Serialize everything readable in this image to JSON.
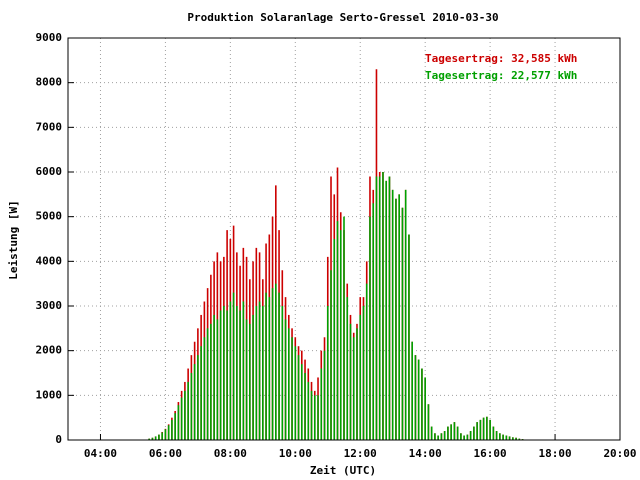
{
  "chart_data": {
    "type": "impulse",
    "title": "Produktion Solaranlage Serto-Gressel 2010-03-30",
    "x_label": "Zeit (UTC)",
    "y_label": "Leistung [W]",
    "xlim": [
      3,
      20
    ],
    "ylim": [
      0,
      9000
    ],
    "xticks": [
      {
        "value": 4,
        "label": "04:00"
      },
      {
        "value": 6,
        "label": "06:00"
      },
      {
        "value": 8,
        "label": "08:00"
      },
      {
        "value": 10,
        "label": "10:00"
      },
      {
        "value": 12,
        "label": "12:00"
      },
      {
        "value": 14,
        "label": "14:00"
      },
      {
        "value": 16,
        "label": "16:00"
      },
      {
        "value": 18,
        "label": "18:00"
      },
      {
        "value": 20,
        "label": "20:00"
      }
    ],
    "yticks": [
      0,
      1000,
      2000,
      3000,
      4000,
      5000,
      6000,
      7000,
      8000,
      9000
    ],
    "grid": true,
    "x": [
      5.5,
      5.6,
      5.7,
      5.8,
      5.9,
      6.0,
      6.1,
      6.2,
      6.3,
      6.4,
      6.5,
      6.6,
      6.7,
      6.8,
      6.9,
      7.0,
      7.1,
      7.2,
      7.3,
      7.4,
      7.5,
      7.6,
      7.7,
      7.8,
      7.9,
      8.0,
      8.1,
      8.2,
      8.3,
      8.4,
      8.5,
      8.6,
      8.7,
      8.8,
      8.9,
      9.0,
      9.1,
      9.2,
      9.3,
      9.4,
      9.5,
      9.6,
      9.7,
      9.8,
      9.9,
      10.0,
      10.1,
      10.2,
      10.3,
      10.4,
      10.5,
      10.6,
      10.7,
      10.8,
      10.9,
      11.0,
      11.1,
      11.2,
      11.3,
      11.4,
      11.5,
      11.6,
      11.7,
      11.8,
      11.9,
      12.0,
      12.1,
      12.2,
      12.3,
      12.4,
      12.5,
      12.6,
      12.7,
      12.8,
      12.9,
      13.0,
      13.1,
      13.2,
      13.3,
      13.4,
      13.5,
      13.6,
      13.7,
      13.8,
      13.9,
      14.0,
      14.1,
      14.2,
      14.3,
      14.4,
      14.5,
      14.6,
      14.7,
      14.8,
      14.9,
      15.0,
      15.1,
      15.2,
      15.3,
      15.4,
      15.5,
      15.6,
      15.7,
      15.8,
      15.9,
      16.0,
      16.1,
      16.2,
      16.3,
      16.4,
      16.5,
      16.6,
      16.7,
      16.8,
      16.9,
      17.0
    ],
    "series": [
      {
        "name": "Tagesertrag: 32,585 kWh",
        "color": "#cc0000",
        "values": [
          30,
          50,
          80,
          120,
          180,
          250,
          350,
          500,
          650,
          850,
          1100,
          1300,
          1600,
          1900,
          2200,
          2500,
          2800,
          3100,
          3400,
          3700,
          4000,
          4200,
          4000,
          4100,
          4700,
          4500,
          4800,
          4200,
          3900,
          4300,
          4100,
          3600,
          4000,
          4300,
          4200,
          3600,
          4400,
          4600,
          5000,
          5700,
          4700,
          3800,
          3200,
          2800,
          2500,
          2300,
          2100,
          2000,
          1800,
          1600,
          1300,
          1100,
          1400,
          2000,
          2300,
          4100,
          5900,
          5500,
          6100,
          5100,
          4700,
          3500,
          2800,
          2400,
          2600,
          3200,
          3200,
          4000,
          5900,
          5600,
          8300,
          6000,
          6000,
          5800,
          5900,
          5600,
          5400,
          5500,
          5200,
          5600,
          4600,
          2200,
          1900,
          1800,
          1600,
          1400,
          800,
          300,
          150,
          100,
          150,
          200,
          300,
          350,
          400,
          300,
          150,
          100,
          120,
          200,
          300,
          400,
          450,
          500,
          520,
          450,
          300,
          200,
          150,
          120,
          100,
          80,
          60,
          50,
          30,
          20
        ]
      },
      {
        "name": "Tagesertrag: 22,577 kWh",
        "color": "#00a000",
        "values": [
          30,
          50,
          80,
          120,
          170,
          240,
          330,
          450,
          600,
          780,
          950,
          1100,
          1300,
          1500,
          1700,
          1900,
          2100,
          2300,
          2500,
          2600,
          2800,
          2700,
          2900,
          3000,
          2900,
          3100,
          3300,
          3000,
          2900,
          3100,
          2700,
          2600,
          2800,
          3000,
          3100,
          3000,
          3300,
          3200,
          3400,
          3500,
          3300,
          3000,
          2700,
          2500,
          2300,
          2100,
          1900,
          1700,
          1500,
          1300,
          1100,
          1000,
          1000,
          1600,
          2000,
          3000,
          3800,
          4500,
          4900,
          4700,
          5000,
          3200,
          2600,
          2300,
          2500,
          2800,
          3000,
          3500,
          5000,
          5300,
          5900,
          5900,
          6000,
          5800,
          5900,
          5600,
          5400,
          5500,
          5200,
          5600,
          4600,
          2200,
          1900,
          1800,
          1600,
          1400,
          800,
          300,
          150,
          100,
          150,
          200,
          300,
          350,
          400,
          300,
          150,
          100,
          120,
          200,
          300,
          400,
          450,
          500,
          520,
          450,
          300,
          200,
          150,
          120,
          100,
          80,
          60,
          50,
          30,
          20
        ]
      }
    ]
  }
}
